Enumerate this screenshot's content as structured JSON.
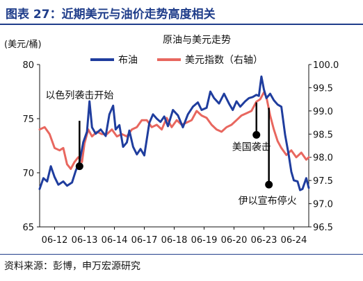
{
  "figure": {
    "title": "图表 27：近期美元与油价走势高度相关",
    "source": "资料来源：彭博，申万宏源研究"
  },
  "chart_data": {
    "type": "line",
    "title": "原油与美元走势",
    "left_axis": {
      "unit": "(美元/桶)",
      "ylim": [
        65,
        80
      ],
      "ticks": [
        "65",
        "70",
        "75",
        "80"
      ]
    },
    "right_axis": {
      "ylim": [
        96.5,
        100.0
      ],
      "ticks": [
        "96.5",
        "97.0",
        "97.5",
        "98.0",
        "98.5",
        "99.0",
        "99.5",
        "100.0"
      ]
    },
    "x_ticks": [
      "06-12",
      "06-13",
      "06-14",
      "06-17",
      "06-18",
      "06-19",
      "06-20",
      "06-23",
      "06-24"
    ],
    "x_range": [
      0,
      10.8
    ],
    "series": [
      {
        "name": "布油",
        "axis": "left",
        "color": "#1f3d9e",
        "points": [
          [
            0,
            68.5
          ],
          [
            0.15,
            69.5
          ],
          [
            0.3,
            69.2
          ],
          [
            0.45,
            70.6
          ],
          [
            0.6,
            69.6
          ],
          [
            0.75,
            68.9
          ],
          [
            0.95,
            69.2
          ],
          [
            1.1,
            68.8
          ],
          [
            1.3,
            69.1
          ],
          [
            1.45,
            70.2
          ],
          [
            1.6,
            71.0
          ],
          [
            1.75,
            72.8
          ],
          [
            1.9,
            73.8
          ],
          [
            2.0,
            76.6
          ],
          [
            2.1,
            74.2
          ],
          [
            2.25,
            73.6
          ],
          [
            2.45,
            74.0
          ],
          [
            2.65,
            73.4
          ],
          [
            2.8,
            75.4
          ],
          [
            2.95,
            76.2
          ],
          [
            3.05,
            74.0
          ],
          [
            3.2,
            74.4
          ],
          [
            3.35,
            72.4
          ],
          [
            3.5,
            72.8
          ],
          [
            3.6,
            73.9
          ],
          [
            3.75,
            72.4
          ],
          [
            3.9,
            71.7
          ],
          [
            4.05,
            72.2
          ],
          [
            4.2,
            71.6
          ],
          [
            4.4,
            74.6
          ],
          [
            4.55,
            75.4
          ],
          [
            4.7,
            75.0
          ],
          [
            4.85,
            74.7
          ],
          [
            5.0,
            75.2
          ],
          [
            5.15,
            74.3
          ],
          [
            5.35,
            75.8
          ],
          [
            5.55,
            75.3
          ],
          [
            5.75,
            74.2
          ],
          [
            5.95,
            75.4
          ],
          [
            6.15,
            76.1
          ],
          [
            6.35,
            76.5
          ],
          [
            6.5,
            75.8
          ],
          [
            6.7,
            76.0
          ],
          [
            6.85,
            77.5
          ],
          [
            7.0,
            76.9
          ],
          [
            7.2,
            76.4
          ],
          [
            7.4,
            77.3
          ],
          [
            7.6,
            76.4
          ],
          [
            7.75,
            75.8
          ],
          [
            7.9,
            76.6
          ],
          [
            8.05,
            76.1
          ],
          [
            8.25,
            76.6
          ],
          [
            8.4,
            76.9
          ],
          [
            8.55,
            77.0
          ],
          [
            8.7,
            77.2
          ],
          [
            8.8,
            77.1
          ],
          [
            8.9,
            78.9
          ],
          [
            9.0,
            77.7
          ],
          [
            9.1,
            76.9
          ],
          [
            9.25,
            77.3
          ],
          [
            9.4,
            76.7
          ],
          [
            9.55,
            76.3
          ],
          [
            9.7,
            76.1
          ],
          [
            9.85,
            73.5
          ],
          [
            10.0,
            71.6
          ],
          [
            10.1,
            70.1
          ],
          [
            10.2,
            69.3
          ],
          [
            10.35,
            69.2
          ],
          [
            10.45,
            68.4
          ],
          [
            10.55,
            68.5
          ],
          [
            10.7,
            69.5
          ],
          [
            10.8,
            68.6
          ]
        ]
      },
      {
        "name": "美元指数（右轴）",
        "axis": "right",
        "color": "#e8675f",
        "points": [
          [
            0,
            98.6
          ],
          [
            0.2,
            98.65
          ],
          [
            0.4,
            98.5
          ],
          [
            0.6,
            98.2
          ],
          [
            0.8,
            98.15
          ],
          [
            0.95,
            98.2
          ],
          [
            1.1,
            97.85
          ],
          [
            1.25,
            97.75
          ],
          [
            1.4,
            97.9
          ],
          [
            1.55,
            98.0
          ],
          [
            1.7,
            97.9
          ],
          [
            1.8,
            98.3
          ],
          [
            1.95,
            98.6
          ],
          [
            2.1,
            98.45
          ],
          [
            2.3,
            98.55
          ],
          [
            2.5,
            98.5
          ],
          [
            2.7,
            98.5
          ],
          [
            2.9,
            98.6
          ],
          [
            3.1,
            98.45
          ],
          [
            3.3,
            98.5
          ],
          [
            3.5,
            98.45
          ],
          [
            3.7,
            98.6
          ],
          [
            3.9,
            98.65
          ],
          [
            4.1,
            98.8
          ],
          [
            4.3,
            98.8
          ],
          [
            4.5,
            98.65
          ],
          [
            4.7,
            98.7
          ],
          [
            4.9,
            98.6
          ],
          [
            5.1,
            98.85
          ],
          [
            5.3,
            98.65
          ],
          [
            5.5,
            98.8
          ],
          [
            5.7,
            98.7
          ],
          [
            5.9,
            98.75
          ],
          [
            6.1,
            98.8
          ],
          [
            6.3,
            99.0
          ],
          [
            6.5,
            98.9
          ],
          [
            6.7,
            98.85
          ],
          [
            6.9,
            98.7
          ],
          [
            7.1,
            98.6
          ],
          [
            7.3,
            98.55
          ],
          [
            7.5,
            98.65
          ],
          [
            7.7,
            98.7
          ],
          [
            7.9,
            98.8
          ],
          [
            8.1,
            98.9
          ],
          [
            8.3,
            98.95
          ],
          [
            8.5,
            99.0
          ],
          [
            8.7,
            99.2
          ],
          [
            8.85,
            99.25
          ],
          [
            9.0,
            99.4
          ],
          [
            9.1,
            99.3
          ],
          [
            9.25,
            98.9
          ],
          [
            9.4,
            98.6
          ],
          [
            9.55,
            98.35
          ],
          [
            9.7,
            98.2
          ],
          [
            9.9,
            98.05
          ],
          [
            10.1,
            98.15
          ],
          [
            10.3,
            98.0
          ],
          [
            10.5,
            98.1
          ],
          [
            10.7,
            97.95
          ],
          [
            10.8,
            98.0
          ]
        ]
      }
    ],
    "annotations": [
      {
        "text": "以色列袭击开始",
        "x": 1.6,
        "y": 74.8,
        "y_end": 70.6
      },
      {
        "text": "美国袭击",
        "x": 8.7,
        "y": 76.5,
        "y_end": 73.5
      },
      {
        "text": "伊以宣布停火",
        "x": 9.2,
        "y": 76.0,
        "y_end": 68.9
      }
    ]
  }
}
